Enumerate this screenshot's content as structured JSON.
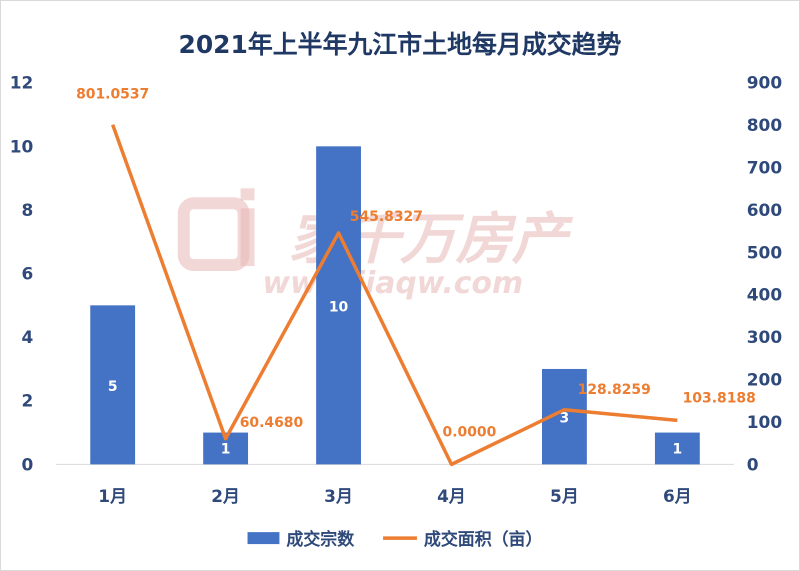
{
  "chart_data": {
    "type": "bar+line",
    "title": "2021年上半年九江市土地每月成交趋势",
    "categories": [
      "1月",
      "2月",
      "3月",
      "4月",
      "5月",
      "6月"
    ],
    "series": [
      {
        "name": "成交宗数",
        "type": "bar",
        "axis": "left",
        "values": [
          5,
          1,
          10,
          0,
          3,
          1
        ],
        "labels": [
          "5",
          "1",
          "10",
          "",
          "3",
          "1"
        ],
        "color": "#4472c4"
      },
      {
        "name": "成交面积（亩）",
        "type": "line",
        "axis": "right",
        "values": [
          801.0537,
          60.468,
          545.8327,
          0.0,
          128.8259,
          103.8188
        ],
        "labels": [
          "801.0537",
          "60.4680",
          "545.8327",
          "0.0000",
          "128.8259",
          "103.8188"
        ],
        "color": "#ed7d31"
      }
    ],
    "y_left": {
      "ylim": [
        0,
        12
      ],
      "ticks": [
        "0",
        "2",
        "4",
        "6",
        "8",
        "10",
        "12"
      ]
    },
    "y_right": {
      "ylim": [
        0,
        900
      ],
      "ticks": [
        "0",
        "100",
        "200",
        "300",
        "400",
        "500",
        "600",
        "700",
        "800",
        "900"
      ]
    },
    "grid": false,
    "legend_position": "bottom"
  },
  "watermark": {
    "brand": "家千万房产",
    "url": "www.jiaqw.com"
  }
}
